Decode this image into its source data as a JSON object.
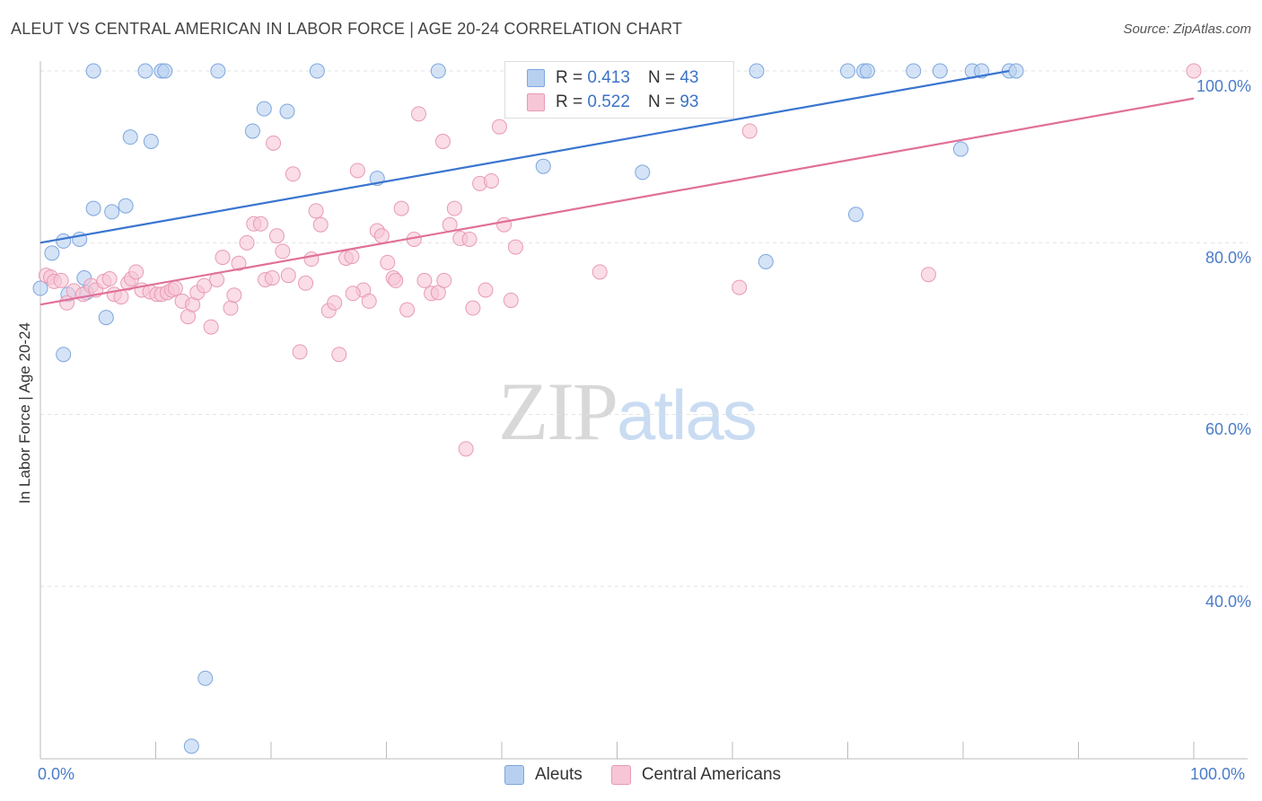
{
  "title": "ALEUT VS CENTRAL AMERICAN IN LABOR FORCE | AGE 20-24 CORRELATION CHART",
  "source": "Source: ZipAtlas.com",
  "watermark": {
    "zip": "ZIP",
    "atlas": "atlas"
  },
  "legend": {
    "r_label": "R =",
    "n_label": "N =",
    "rows": [
      {
        "r": "0.413",
        "n": "43"
      },
      {
        "r": "0.522",
        "n": "93"
      }
    ]
  },
  "colors": {
    "aleut": "#3a75d0",
    "central_american": "#e07099",
    "aleut_fill": "#b8d0f0",
    "ca_fill": "#f7c6d6"
  },
  "chart_data": {
    "type": "scatter",
    "title": "ALEUT VS CENTRAL AMERICAN IN LABOR FORCE | AGE 20-24 CORRELATION CHART",
    "xlabel": "",
    "ylabel": "In Labor Force | Age 20-24",
    "xlim": [
      0,
      100
    ],
    "ylim": [
      20,
      101
    ],
    "x_tick_labels": [
      "0.0%",
      "100.0%"
    ],
    "y_tick_labels": [
      "100.0%",
      "80.0%",
      "60.0%",
      "40.0%"
    ],
    "y_ticks": [
      100,
      80,
      60,
      40
    ],
    "grid": true,
    "legend_position": "bottom-center",
    "series": [
      {
        "name": "Aleuts",
        "color": "#3a75d0",
        "trend": [
          [
            0,
            80.0
          ],
          [
            84,
            100.0
          ]
        ],
        "points": [
          [
            0,
            74.7
          ],
          [
            1,
            78.8
          ],
          [
            2,
            67.0
          ],
          [
            2,
            80.2
          ],
          [
            2.4,
            74.0
          ],
          [
            3.4,
            80.4
          ],
          [
            3.8,
            75.9
          ],
          [
            4,
            74.2
          ],
          [
            4.6,
            100
          ],
          [
            4.6,
            84.0
          ],
          [
            5.7,
            71.3
          ],
          [
            6.2,
            83.6
          ],
          [
            7.4,
            84.3
          ],
          [
            7.8,
            92.3
          ],
          [
            9.1,
            100
          ],
          [
            9.6,
            91.8
          ],
          [
            10.5,
            100
          ],
          [
            10.8,
            100
          ],
          [
            13.1,
            21.4
          ],
          [
            14.3,
            29.3
          ],
          [
            15.4,
            100
          ],
          [
            18.4,
            93.0
          ],
          [
            19.4,
            95.6
          ],
          [
            21.4,
            95.3
          ],
          [
            24.0,
            100
          ],
          [
            29.2,
            87.5
          ],
          [
            34.5,
            100
          ],
          [
            43.6,
            88.9
          ],
          [
            47.0,
            100
          ],
          [
            52.2,
            88.2
          ],
          [
            62.1,
            100
          ],
          [
            62.9,
            77.8
          ],
          [
            70.0,
            100
          ],
          [
            70.7,
            83.3
          ],
          [
            71.4,
            100
          ],
          [
            71.7,
            100
          ],
          [
            75.7,
            100
          ],
          [
            78.0,
            100
          ],
          [
            79.8,
            90.9
          ],
          [
            80.8,
            100
          ],
          [
            81.6,
            100
          ],
          [
            84.0,
            100
          ],
          [
            84.6,
            100
          ]
        ]
      },
      {
        "name": "Central Americans",
        "color": "#e07099",
        "trend": [
          [
            0,
            72.8
          ],
          [
            100,
            96.8
          ]
        ],
        "points": [
          [
            0.5,
            76.2
          ],
          [
            0.9,
            76.0
          ],
          [
            1.2,
            75.5
          ],
          [
            1.8,
            75.6
          ],
          [
            2.3,
            73.0
          ],
          [
            2.9,
            74.4
          ],
          [
            3.7,
            74.0
          ],
          [
            4.4,
            75.0
          ],
          [
            4.8,
            74.5
          ],
          [
            5.5,
            75.5
          ],
          [
            6.0,
            75.8
          ],
          [
            6.4,
            74.0
          ],
          [
            7.0,
            73.7
          ],
          [
            7.6,
            75.3
          ],
          [
            7.9,
            75.8
          ],
          [
            8.3,
            76.6
          ],
          [
            8.8,
            74.5
          ],
          [
            9.5,
            74.3
          ],
          [
            10.1,
            74.0
          ],
          [
            10.5,
            74.0
          ],
          [
            11.0,
            74.2
          ],
          [
            11.4,
            74.5
          ],
          [
            11.7,
            74.7
          ],
          [
            12.3,
            73.2
          ],
          [
            12.8,
            71.4
          ],
          [
            13.2,
            72.8
          ],
          [
            13.6,
            74.2
          ],
          [
            14.2,
            75.0
          ],
          [
            14.8,
            70.2
          ],
          [
            15.3,
            75.7
          ],
          [
            15.8,
            78.3
          ],
          [
            16.5,
            72.4
          ],
          [
            16.8,
            73.9
          ],
          [
            17.2,
            77.6
          ],
          [
            17.9,
            80.0
          ],
          [
            18.5,
            82.2
          ],
          [
            19.1,
            82.2
          ],
          [
            19.5,
            75.7
          ],
          [
            20.1,
            75.9
          ],
          [
            20.5,
            80.8
          ],
          [
            21.0,
            79.0
          ],
          [
            21.5,
            76.2
          ],
          [
            21.9,
            88.0
          ],
          [
            22.5,
            67.3
          ],
          [
            23.0,
            75.3
          ],
          [
            23.5,
            78.1
          ],
          [
            23.9,
            83.7
          ],
          [
            24.3,
            82.1
          ],
          [
            25.0,
            72.1
          ],
          [
            25.5,
            73.0
          ],
          [
            25.9,
            67.0
          ],
          [
            26.5,
            78.2
          ],
          [
            27.0,
            78.4
          ],
          [
            27.5,
            88.4
          ],
          [
            28.0,
            74.5
          ],
          [
            28.5,
            73.2
          ],
          [
            29.2,
            81.4
          ],
          [
            29.6,
            80.8
          ],
          [
            30.1,
            77.7
          ],
          [
            30.6,
            75.9
          ],
          [
            31.3,
            84.0
          ],
          [
            31.8,
            72.2
          ],
          [
            32.4,
            80.4
          ],
          [
            32.8,
            95.0
          ],
          [
            33.3,
            75.6
          ],
          [
            33.9,
            74.1
          ],
          [
            34.5,
            74.2
          ],
          [
            35.0,
            75.6
          ],
          [
            35.5,
            82.1
          ],
          [
            35.9,
            84.0
          ],
          [
            36.4,
            80.5
          ],
          [
            36.9,
            56.0
          ],
          [
            37.5,
            72.4
          ],
          [
            38.1,
            86.9
          ],
          [
            38.6,
            74.5
          ],
          [
            39.1,
            87.2
          ],
          [
            39.8,
            93.5
          ],
          [
            40.2,
            82.1
          ],
          [
            40.8,
            73.3
          ],
          [
            41.2,
            79.5
          ],
          [
            41.8,
            97.5
          ],
          [
            48.5,
            76.6
          ],
          [
            60.6,
            74.8
          ],
          [
            61.5,
            93.0
          ],
          [
            77.0,
            76.3
          ],
          [
            100,
            100
          ],
          [
            34.9,
            91.8
          ],
          [
            30.8,
            75.6
          ],
          [
            44.5,
            100
          ],
          [
            55.0,
            100
          ],
          [
            20.2,
            91.6
          ],
          [
            27.1,
            74.1
          ],
          [
            37.2,
            80.4
          ]
        ]
      }
    ]
  },
  "bottom_legend": {
    "items": [
      "Aleuts",
      "Central Americans"
    ]
  }
}
